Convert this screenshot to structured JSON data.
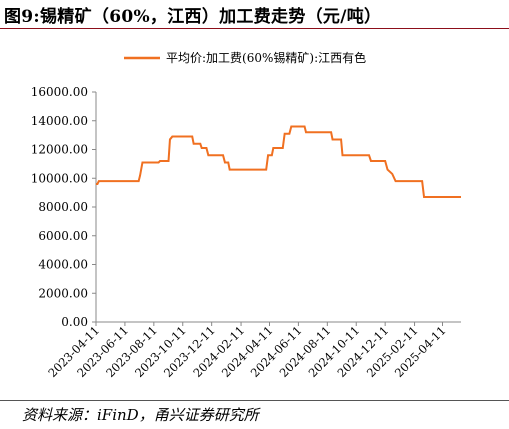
{
  "header": {
    "title": "图9:锡精矿（60%，江西）加工费走势（元/吨）"
  },
  "footer": {
    "source": "资料来源：iFinD，甬兴证券研究所"
  },
  "colors": {
    "series": "#f07021",
    "axis": "#888888",
    "text": "#000000"
  },
  "chart_data": {
    "type": "line",
    "legend": {
      "position": "top-center"
    },
    "grid": false,
    "series": [
      {
        "name": "平均价:加工费(60%锡精矿):江西有色",
        "points": [
          [
            "2023-04-11",
            9600
          ],
          [
            "2023-04-14",
            9600
          ],
          [
            "2023-04-17",
            9800
          ],
          [
            "2023-07-10",
            9800
          ],
          [
            "2023-07-13",
            10200
          ],
          [
            "2023-07-18",
            11100
          ],
          [
            "2023-08-21",
            11100
          ],
          [
            "2023-08-24",
            11200
          ],
          [
            "2023-09-11",
            11200
          ],
          [
            "2023-09-14",
            12700
          ],
          [
            "2023-09-19",
            12900
          ],
          [
            "2023-10-31",
            12900
          ],
          [
            "2023-11-03",
            12400
          ],
          [
            "2023-11-17",
            12400
          ],
          [
            "2023-11-20",
            12100
          ],
          [
            "2023-11-30",
            12100
          ],
          [
            "2023-12-04",
            11600
          ],
          [
            "2024-01-04",
            11600
          ],
          [
            "2024-01-08",
            11100
          ],
          [
            "2024-01-15",
            11100
          ],
          [
            "2024-01-18",
            10600
          ],
          [
            "2024-04-04",
            10600
          ],
          [
            "2024-04-08",
            11600
          ],
          [
            "2024-04-16",
            11600
          ],
          [
            "2024-04-19",
            12100
          ],
          [
            "2024-05-09",
            12100
          ],
          [
            "2024-05-13",
            13100
          ],
          [
            "2024-05-23",
            13100
          ],
          [
            "2024-05-27",
            13600
          ],
          [
            "2024-06-24",
            13600
          ],
          [
            "2024-06-27",
            13200
          ],
          [
            "2024-08-19",
            13200
          ],
          [
            "2024-08-22",
            12700
          ],
          [
            "2024-09-09",
            12700
          ],
          [
            "2024-09-12",
            11600
          ],
          [
            "2024-11-07",
            11600
          ],
          [
            "2024-11-11",
            11200
          ],
          [
            "2024-12-11",
            11200
          ],
          [
            "2024-12-16",
            10600
          ],
          [
            "2024-12-26",
            10300
          ],
          [
            "2025-01-02",
            9800
          ],
          [
            "2025-02-27",
            9800
          ],
          [
            "2025-03-03",
            8700
          ],
          [
            "2025-05-20",
            8700
          ]
        ]
      }
    ],
    "xlabel": "",
    "ylabel": "",
    "x_ticks": [
      "2023-04-11",
      "2023-06-11",
      "2023-08-11",
      "2023-10-11",
      "2023-12-11",
      "2024-02-11",
      "2024-04-11",
      "2024-06-11",
      "2024-08-11",
      "2024-10-11",
      "2024-12-11",
      "2025-02-11",
      "2025-04-11"
    ],
    "y_ticks": [
      "0.00",
      "2000.00",
      "4000.00",
      "6000.00",
      "8000.00",
      "10000.00",
      "12000.00",
      "14000.00",
      "16000.00"
    ],
    "ylim": [
      0,
      16000
    ],
    "xlim": [
      "2023-04-11",
      "2025-05-20"
    ]
  }
}
